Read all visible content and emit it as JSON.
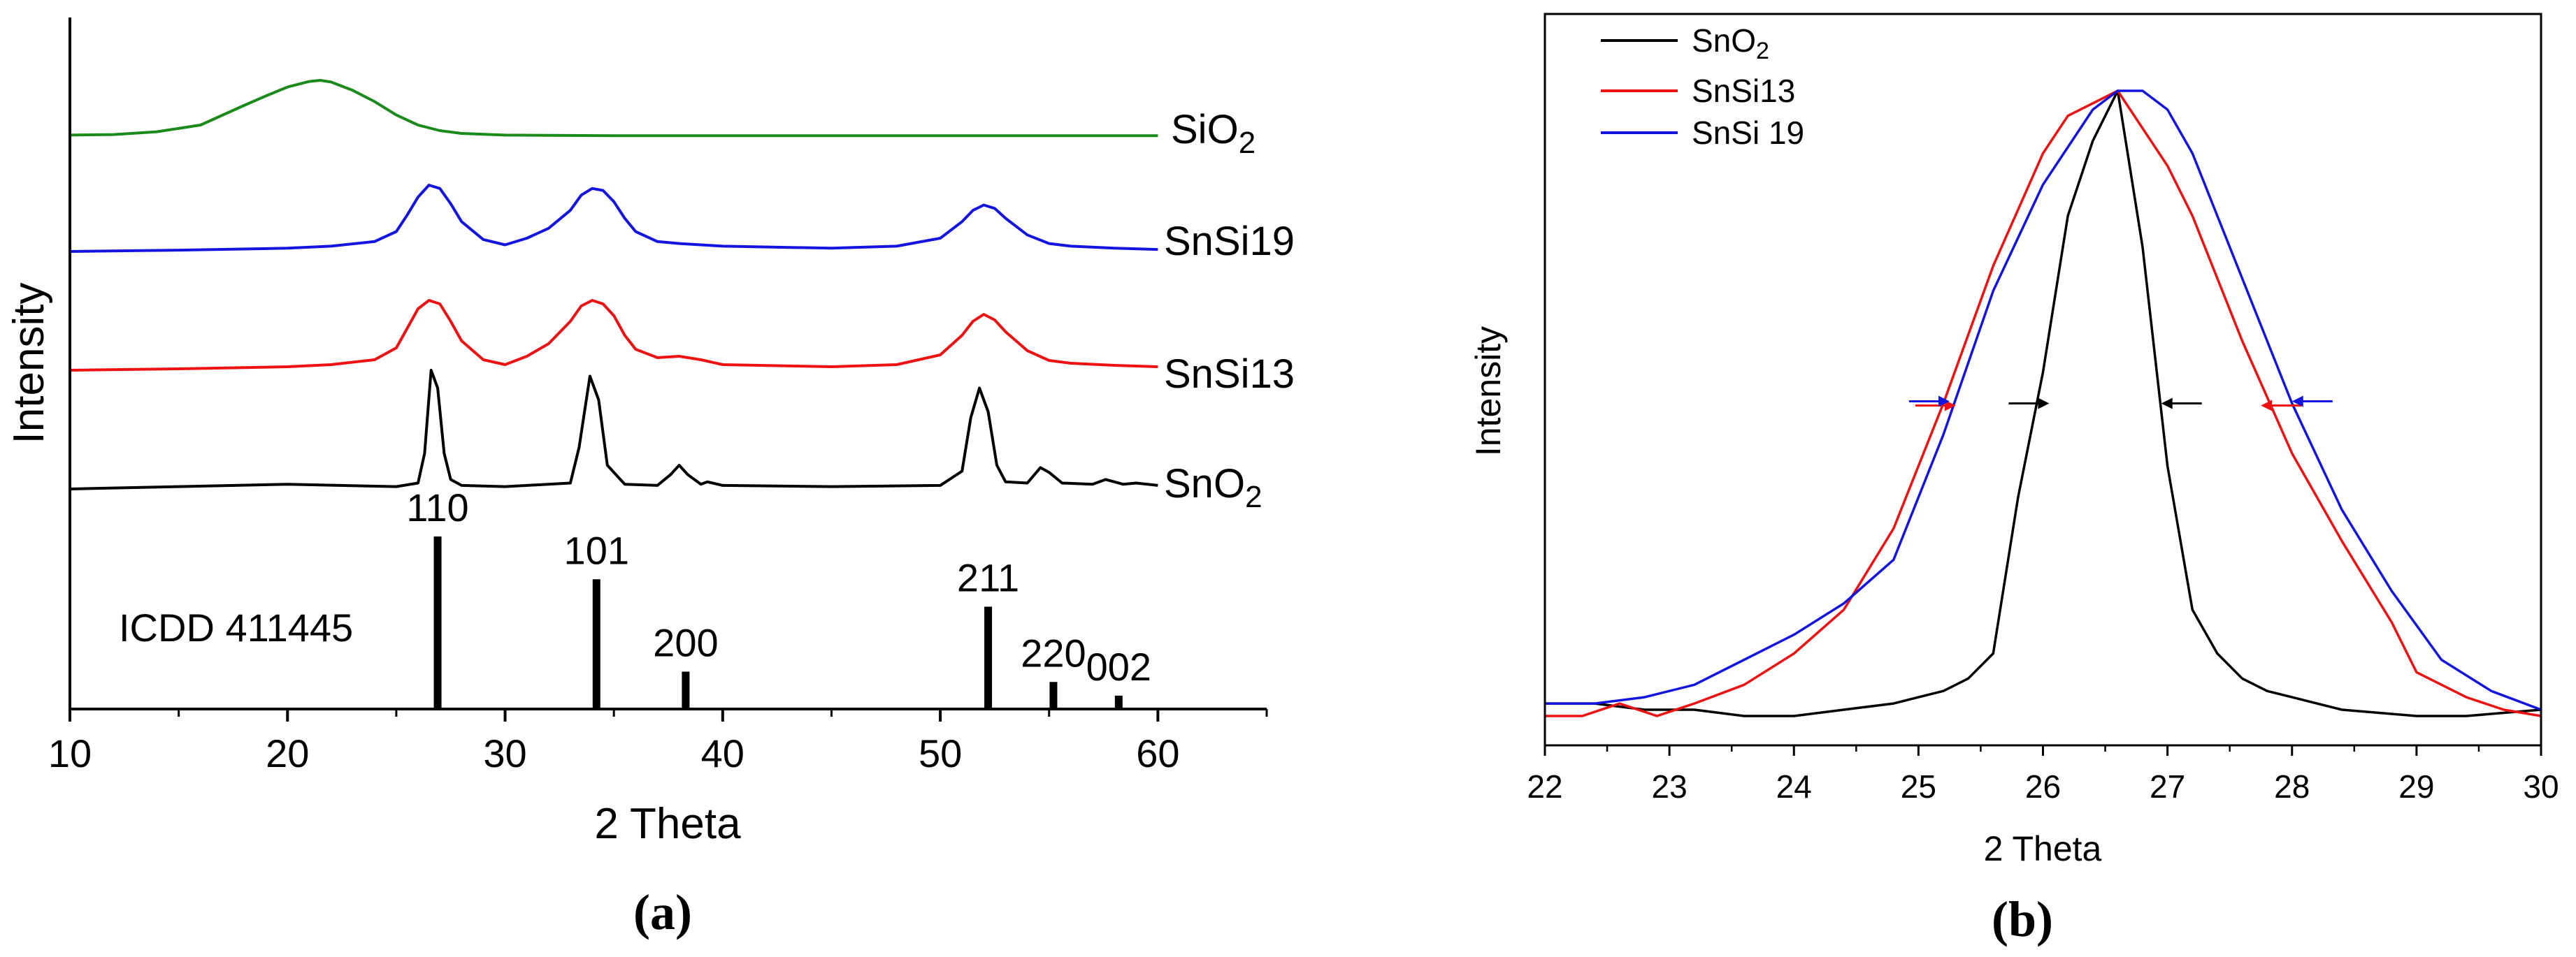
{
  "chart_data": [
    {
      "panel_label": "(a)",
      "type": "line",
      "xlabel": "2 Theta",
      "ylabel": "Intensity",
      "xlim": [
        10,
        65
      ],
      "x_ticks": [
        "10",
        "20",
        "30",
        "40",
        "50",
        "60"
      ],
      "y_ticks": [],
      "series": [
        {
          "name": "SiO2",
          "label": "SiO",
          "label_sub": "2",
          "color": "#1a8a1a",
          "x": [
            10,
            12,
            14,
            16,
            18,
            19,
            20,
            21,
            21.5,
            22,
            23,
            24,
            25,
            26,
            27,
            28,
            30,
            35,
            40,
            45,
            50,
            55,
            60
          ],
          "y": [
            0.02,
            0.03,
            0.08,
            0.2,
            0.55,
            0.72,
            0.88,
            0.98,
            1.0,
            0.97,
            0.82,
            0.62,
            0.38,
            0.2,
            0.1,
            0.05,
            0.02,
            0.01,
            0.01,
            0.01,
            0.01,
            0.01,
            0.01
          ]
        },
        {
          "name": "SnSi19",
          "label": "SnSi19",
          "color": "#1414e0",
          "x": [
            10,
            15,
            20,
            22,
            24,
            25,
            25.5,
            26,
            26.5,
            27,
            27.5,
            28,
            29,
            30,
            31,
            32,
            33,
            33.5,
            34,
            34.5,
            35,
            35.5,
            36,
            37,
            38,
            39,
            40,
            45,
            48,
            50,
            51,
            51.5,
            52,
            52.5,
            53,
            54,
            55,
            56,
            58,
            60
          ],
          "y": [
            0.0,
            0.02,
            0.05,
            0.08,
            0.15,
            0.3,
            0.55,
            0.82,
            1.0,
            0.95,
            0.72,
            0.45,
            0.18,
            0.1,
            0.2,
            0.35,
            0.62,
            0.85,
            0.95,
            0.92,
            0.75,
            0.5,
            0.3,
            0.15,
            0.12,
            0.1,
            0.08,
            0.05,
            0.08,
            0.2,
            0.45,
            0.62,
            0.7,
            0.65,
            0.5,
            0.25,
            0.12,
            0.08,
            0.05,
            0.03
          ]
        },
        {
          "name": "SnSi13",
          "label": "SnSi13",
          "color": "#ee1111",
          "x": [
            10,
            15,
            20,
            22,
            24,
            25,
            25.5,
            26,
            26.5,
            27,
            27.5,
            28,
            29,
            30,
            31,
            32,
            33,
            33.5,
            34,
            34.5,
            35,
            35.5,
            36,
            37,
            38,
            39,
            40,
            45,
            48,
            50,
            51,
            51.5,
            52,
            52.5,
            53,
            54,
            55,
            56,
            58,
            60
          ],
          "y": [
            0.0,
            0.02,
            0.05,
            0.08,
            0.15,
            0.32,
            0.6,
            0.88,
            1.0,
            0.95,
            0.7,
            0.42,
            0.15,
            0.08,
            0.2,
            0.38,
            0.7,
            0.92,
            1.0,
            0.95,
            0.78,
            0.5,
            0.3,
            0.18,
            0.2,
            0.15,
            0.08,
            0.05,
            0.08,
            0.22,
            0.5,
            0.7,
            0.8,
            0.72,
            0.55,
            0.28,
            0.14,
            0.1,
            0.07,
            0.05
          ]
        },
        {
          "name": "SnO2",
          "label": "SnO",
          "label_sub": "2",
          "color": "#000000",
          "x": [
            10,
            15,
            20,
            25,
            26,
            26.3,
            26.6,
            26.9,
            27.2,
            27.5,
            28,
            30,
            33,
            33.4,
            33.9,
            34.3,
            34.7,
            35.5,
            37,
            37.6,
            38,
            38.4,
            39,
            39.3,
            40,
            45,
            50,
            51,
            51.4,
            51.8,
            52.2,
            52.6,
            53,
            54,
            54.6,
            55,
            55.6,
            57,
            57.6,
            58.4,
            59,
            60
          ],
          "y": [
            0.0,
            0.02,
            0.04,
            0.02,
            0.05,
            0.3,
            1.0,
            0.85,
            0.3,
            0.08,
            0.03,
            0.02,
            0.05,
            0.35,
            0.95,
            0.75,
            0.2,
            0.04,
            0.03,
            0.12,
            0.2,
            0.12,
            0.04,
            0.06,
            0.03,
            0.02,
            0.03,
            0.15,
            0.6,
            0.85,
            0.65,
            0.2,
            0.06,
            0.05,
            0.18,
            0.14,
            0.05,
            0.04,
            0.08,
            0.04,
            0.05,
            0.03
          ]
        }
      ],
      "reference": {
        "label": "ICDD 411445",
        "lines": [
          {
            "x": 26.9,
            "height": 1.0,
            "hkl": "110"
          },
          {
            "x": 34.2,
            "height": 0.75,
            "hkl": "101"
          },
          {
            "x": 38.3,
            "height": 0.21,
            "hkl": "200"
          },
          {
            "x": 52.2,
            "height": 0.59,
            "hkl": "211"
          },
          {
            "x": 55.2,
            "height": 0.15,
            "hkl": "220"
          },
          {
            "x": 58.2,
            "height": 0.07,
            "hkl": "002"
          }
        ]
      }
    },
    {
      "panel_label": "(b)",
      "type": "line",
      "xlabel": "2 Theta",
      "ylabel": "Intensity",
      "xlim": [
        22,
        30
      ],
      "ylim": [
        0,
        1
      ],
      "x_ticks": [
        "22",
        "23",
        "24",
        "25",
        "26",
        "27",
        "28",
        "29",
        "30"
      ],
      "legend_position": "top-left",
      "legend": [
        {
          "label": "SnO",
          "sub": "2",
          "color": "#000000"
        },
        {
          "label": "SnSi13",
          "color": "#ee1111"
        },
        {
          "label": "SnSi 19",
          "color": "#1414e0"
        }
      ],
      "series": [
        {
          "name": "SnO2",
          "color": "#000000",
          "x": [
            22,
            22.4,
            22.8,
            23.2,
            23.6,
            24,
            24.4,
            24.8,
            25,
            25.2,
            25.4,
            25.6,
            25.8,
            26,
            26.2,
            26.4,
            26.6,
            26.8,
            27,
            27.2,
            27.4,
            27.6,
            27.8,
            28,
            28.4,
            29,
            29.4,
            30
          ],
          "y": [
            0.02,
            0.02,
            0.01,
            0.01,
            0.0,
            0.0,
            0.01,
            0.02,
            0.03,
            0.04,
            0.06,
            0.1,
            0.35,
            0.55,
            0.8,
            0.92,
            1.0,
            0.75,
            0.4,
            0.17,
            0.1,
            0.06,
            0.04,
            0.03,
            0.01,
            0.0,
            0.0,
            0.01
          ]
        },
        {
          "name": "SnSi13",
          "color": "#ee1111",
          "x": [
            22,
            22.3,
            22.6,
            22.9,
            23.2,
            23.6,
            24,
            24.4,
            24.8,
            25.2,
            25.6,
            26,
            26.2,
            26.6,
            27,
            27.2,
            27.6,
            28,
            28.4,
            28.8,
            29,
            29.4,
            29.7,
            30
          ],
          "y": [
            0.0,
            0.0,
            0.02,
            0.0,
            0.02,
            0.05,
            0.1,
            0.17,
            0.3,
            0.5,
            0.72,
            0.9,
            0.96,
            1.0,
            0.88,
            0.8,
            0.6,
            0.42,
            0.28,
            0.15,
            0.07,
            0.03,
            0.01,
            0.0
          ]
        },
        {
          "name": "SnSi19",
          "color": "#1414e0",
          "x": [
            22,
            22.4,
            22.8,
            23.2,
            23.6,
            24,
            24.4,
            24.8,
            25.2,
            25.6,
            26,
            26.4,
            26.6,
            26.8,
            27,
            27.2,
            27.6,
            28,
            28.4,
            28.8,
            29.2,
            29.6,
            30
          ],
          "y": [
            0.02,
            0.02,
            0.03,
            0.05,
            0.09,
            0.13,
            0.18,
            0.25,
            0.45,
            0.68,
            0.85,
            0.97,
            1.0,
            1.0,
            0.97,
            0.9,
            0.7,
            0.5,
            0.33,
            0.2,
            0.09,
            0.04,
            0.01
          ]
        }
      ],
      "fwhm_markers": [
        {
          "series": "SnO2",
          "color": "#000000",
          "left_x": 26.05,
          "right_x": 26.95
        },
        {
          "series": "SnSi13",
          "color": "#ee1111",
          "left_x": 25.3,
          "right_x": 27.75
        },
        {
          "series": "SnSi19",
          "color": "#1414e0",
          "left_x": 25.25,
          "right_x": 28.0
        }
      ]
    }
  ]
}
